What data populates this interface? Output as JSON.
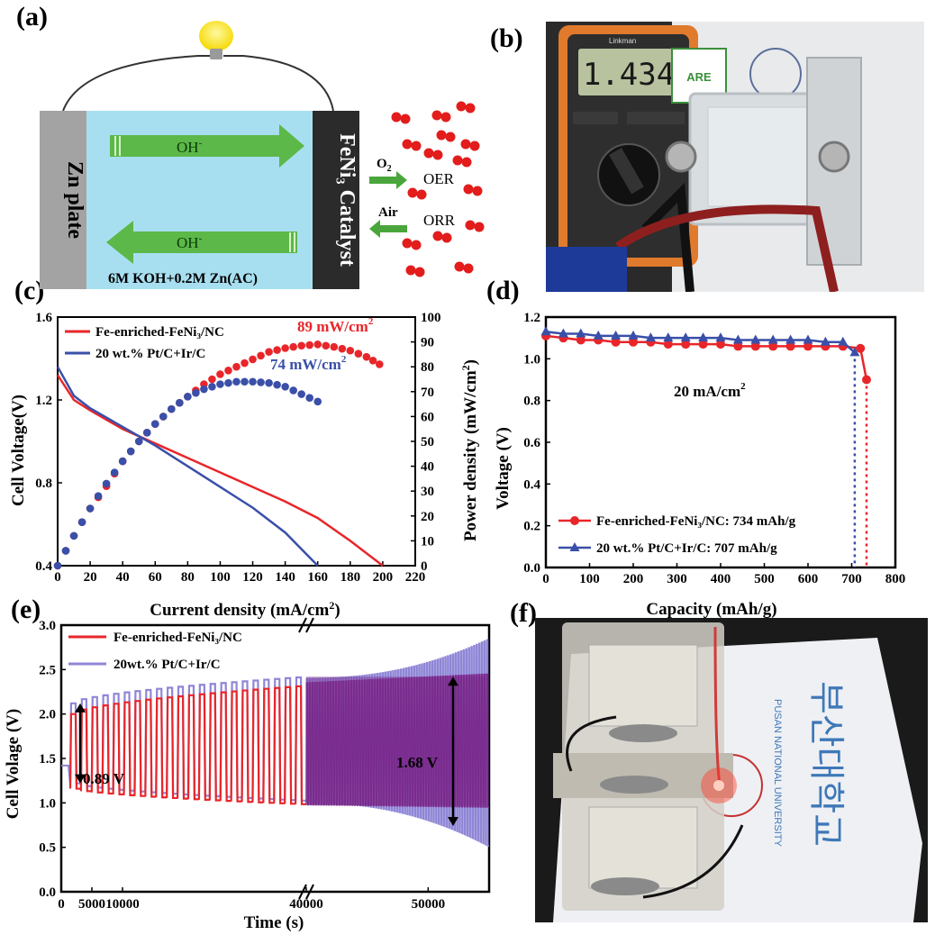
{
  "panels": {
    "a": "(a)",
    "b": "(b)",
    "c": "(c)",
    "d": "(d)",
    "e": "(e)",
    "f": "(f)"
  },
  "schematic": {
    "anode": "Zn plate",
    "cathode": "FeNi₃ Catalyst",
    "ion_top": "OH",
    "ion_bottom": "OH",
    "ion_sup": "-",
    "electrolyte": "6M KOH+0.2M Zn(AC)",
    "o2": "O",
    "o2_sub": "2",
    "air": "Air",
    "oer": "OER",
    "orr": "ORR"
  },
  "photo_b": {
    "multimeter_reading": "1.434",
    "brand": "Linkman",
    "seal_text": "ARE"
  },
  "photo_f": {
    "card_text_ko": "부산대학교",
    "card_text_en": "PUSAN NATIONAL UNIVERSITY"
  },
  "colors": {
    "red": "#e8262a",
    "blue": "#3a4fa8",
    "purple": "#7b2c8f",
    "lavender": "#8f86d6",
    "cell": "#a8dff0",
    "green": "#4aa63c"
  },
  "chart_data": [
    {
      "id": "c",
      "type": "line",
      "xlabel": "Current density (mA/cm",
      "xlabel_sup": "2",
      "xlabel_tail": ")",
      "ylabel": "Cell Voltage(V)",
      "ylabel2": "Power density (mW/cm",
      "ylabel2_sup": "2",
      "ylabel2_tail": ")",
      "xlim": [
        0,
        220
      ],
      "ylim": [
        0.4,
        1.6
      ],
      "y2lim": [
        0,
        100
      ],
      "xticks": [
        "0",
        "20",
        "40",
        "60",
        "80",
        "100",
        "120",
        "140",
        "160",
        "180",
        "200",
        "220"
      ],
      "yticks": [
        "0.4",
        "0.8",
        "1.2",
        "1.6"
      ],
      "y2ticks": [
        "0",
        "10",
        "20",
        "30",
        "40",
        "50",
        "60",
        "70",
        "80",
        "90",
        "100"
      ],
      "legend": [
        "Fe-enriched-FeNi₃/NC",
        "20 wt.% Pt/C+Ir/C"
      ],
      "annotations": [
        {
          "text": "89 mW/cm",
          "sup": "2"
        },
        {
          "text": "74 mW/cm",
          "sup": "2"
        }
      ],
      "series": [
        {
          "name": "Fe-enriched-FeNi₃/NC",
          "axis": "voltage",
          "x": [
            0,
            10,
            20,
            40,
            60,
            80,
            100,
            120,
            140,
            160,
            180,
            200
          ],
          "y": [
            1.32,
            1.2,
            1.15,
            1.06,
            0.99,
            0.92,
            0.85,
            0.78,
            0.71,
            0.63,
            0.52,
            0.4
          ]
        },
        {
          "name": "20 wt.% Pt/C+Ir/C",
          "axis": "voltage",
          "x": [
            0,
            10,
            20,
            40,
            60,
            80,
            100,
            120,
            140,
            160
          ],
          "y": [
            1.36,
            1.22,
            1.16,
            1.07,
            0.98,
            0.88,
            0.78,
            0.68,
            0.56,
            0.4
          ]
        },
        {
          "name": "Fe-enriched-FeNi₃/NC",
          "axis": "power",
          "x": [
            0,
            10,
            20,
            30,
            40,
            50,
            60,
            70,
            80,
            90,
            100,
            110,
            120,
            130,
            140,
            150,
            160,
            170,
            180,
            190,
            198
          ],
          "y": [
            0,
            12,
            23,
            32,
            42,
            50,
            57,
            63,
            68,
            73,
            77,
            80,
            83,
            86,
            87.5,
            88.5,
            89,
            88,
            86.5,
            84,
            81
          ]
        },
        {
          "name": "20 wt.% Pt/C+Ir/C",
          "axis": "power",
          "x": [
            0,
            10,
            20,
            30,
            40,
            50,
            60,
            70,
            80,
            90,
            100,
            110,
            120,
            130,
            140,
            150,
            160
          ],
          "y": [
            0,
            12,
            23,
            33,
            42,
            50,
            57,
            63,
            68,
            71,
            73,
            74,
            74,
            73.5,
            72,
            69,
            66
          ]
        }
      ]
    },
    {
      "id": "d",
      "type": "line",
      "xlabel": "Capacity (mAh/g)",
      "ylabel": "Voltage (V)",
      "xlim": [
        0,
        800
      ],
      "ylim": [
        0,
        1.2
      ],
      "xticks": [
        "0",
        "100",
        "200",
        "300",
        "400",
        "500",
        "600",
        "700",
        "800"
      ],
      "yticks": [
        "0.0",
        "0.2",
        "0.4",
        "0.6",
        "0.8",
        "1.0",
        "1.2"
      ],
      "annotation": "20 mA/cm",
      "annotation_sup": "2",
      "legend": [
        "Fe-enriched-FeNi₃/NC: 734 mAh/g",
        "20 wt.% Pt/C+Ir/C: 707 mAh/g"
      ],
      "series": [
        {
          "name": "Fe-enriched-FeNi₃/NC",
          "x": [
            0,
            40,
            80,
            120,
            160,
            200,
            240,
            280,
            320,
            360,
            400,
            440,
            480,
            520,
            560,
            600,
            640,
            680,
            720,
            734
          ],
          "y": [
            1.11,
            1.1,
            1.09,
            1.09,
            1.08,
            1.08,
            1.08,
            1.07,
            1.07,
            1.07,
            1.07,
            1.06,
            1.06,
            1.06,
            1.06,
            1.06,
            1.06,
            1.06,
            1.05,
            0.9
          ],
          "end": 734
        },
        {
          "name": "20 wt.% Pt/C+Ir/C",
          "x": [
            0,
            40,
            80,
            120,
            160,
            200,
            240,
            280,
            320,
            360,
            400,
            440,
            480,
            520,
            560,
            600,
            640,
            680,
            707
          ],
          "y": [
            1.13,
            1.12,
            1.12,
            1.11,
            1.11,
            1.11,
            1.1,
            1.1,
            1.1,
            1.1,
            1.1,
            1.09,
            1.09,
            1.09,
            1.09,
            1.09,
            1.08,
            1.08,
            1.03
          ],
          "end": 707
        }
      ]
    },
    {
      "id": "e",
      "type": "line",
      "xlabel": "Time (s)",
      "ylabel": "Cell Volage (V)",
      "ylim": [
        0,
        3.0
      ],
      "xticks": [
        "0",
        "5000",
        "10000",
        "40000",
        "50000"
      ],
      "yticks": [
        "0.0",
        "0.5",
        "1.0",
        "1.5",
        "2.0",
        "2.5",
        "3.0"
      ],
      "legend": [
        "Fe-enriched-FeNi₃/NC",
        "20wt.% Pt/C+Ir/C"
      ],
      "annotations": [
        "0.89 V",
        "1.68 V"
      ],
      "series": [
        {
          "name": "Fe-enriched-FeNi₃/NC",
          "charge": [
            2.0,
            2.3
          ],
          "discharge": [
            1.15,
            0.95
          ]
        },
        {
          "name": "20wt.% Pt/C+Ir/C",
          "charge": [
            2.1,
            2.9
          ],
          "discharge": [
            1.2,
            0.5
          ]
        }
      ]
    }
  ]
}
